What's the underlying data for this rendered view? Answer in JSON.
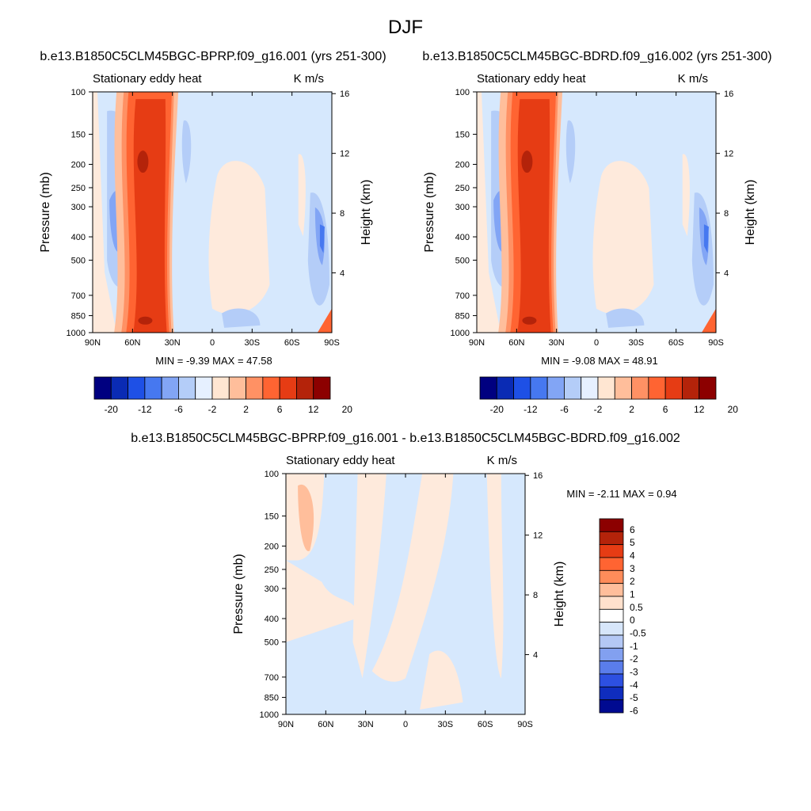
{
  "figure": {
    "title": "DJF"
  },
  "chart_data": [
    {
      "type": "heatmap",
      "panel_title": "b.e13.B1850C5CLM45BGC-BPRP.f09_g16.001 (yrs 251-300)",
      "left_label": "Stationary eddy heat",
      "right_label": "K m/s",
      "ylabel": "Pressure (mb)",
      "ylabel_right": "Height (km)",
      "x_ticks": [
        "90N",
        "60N",
        "30N",
        "0",
        "30S",
        "60S",
        "90S"
      ],
      "y_ticks": [
        "100",
        "150",
        "200",
        "250",
        "300",
        "400",
        "500",
        "700",
        "850",
        "1000"
      ],
      "y_ticks_right": [
        "16",
        "12",
        "8",
        "4"
      ],
      "stats": "MIN =  -9.39   MAX =  47.58",
      "min": -9.39,
      "max": 47.58,
      "colorbar_orientation": "horizontal",
      "colorbar_labels": [
        "-20",
        "-12",
        "-6",
        "-2",
        "2",
        "6",
        "12",
        "20"
      ]
    },
    {
      "type": "heatmap",
      "panel_title": "b.e13.B1850C5CLM45BGC-BDRD.f09_g16.002 (yrs 251-300)",
      "left_label": "Stationary eddy heat",
      "right_label": "K m/s",
      "ylabel": "Pressure (mb)",
      "ylabel_right": "Height (km)",
      "x_ticks": [
        "90N",
        "60N",
        "30N",
        "0",
        "30S",
        "60S",
        "90S"
      ],
      "y_ticks": [
        "100",
        "150",
        "200",
        "250",
        "300",
        "400",
        "500",
        "700",
        "850",
        "1000"
      ],
      "y_ticks_right": [
        "16",
        "12",
        "8",
        "4"
      ],
      "stats": "MIN =  -9.08   MAX =  48.91",
      "min": -9.08,
      "max": 48.91,
      "colorbar_orientation": "horizontal",
      "colorbar_labels": [
        "-20",
        "-12",
        "-6",
        "-2",
        "2",
        "6",
        "12",
        "20"
      ]
    },
    {
      "type": "heatmap",
      "panel_title": "b.e13.B1850C5CLM45BGC-BPRP.f09_g16.001 - b.e13.B1850C5CLM45BGC-BDRD.f09_g16.002",
      "left_label": "Stationary eddy heat",
      "right_label": "K m/s",
      "ylabel": "Pressure (mb)",
      "ylabel_right": "Height (km)",
      "x_ticks": [
        "90N",
        "60N",
        "30N",
        "0",
        "30S",
        "60S",
        "90S"
      ],
      "y_ticks": [
        "100",
        "150",
        "200",
        "250",
        "300",
        "400",
        "500",
        "700",
        "850",
        "1000"
      ],
      "y_ticks_right": [
        "16",
        "12",
        "8",
        "4"
      ],
      "stats": "MIN =  -2.11   MAX =   0.94",
      "min": -2.11,
      "max": 0.94,
      "colorbar_orientation": "vertical",
      "colorbar_labels": [
        "6",
        "5",
        "4",
        "3",
        "2",
        "1",
        "0.5",
        "0",
        "-0.5",
        "-1",
        "-2",
        "-3",
        "-4",
        "-5",
        "-6"
      ]
    }
  ],
  "colors": {
    "main_bar": [
      "#000080",
      "#0a2bb4",
      "#1e50e6",
      "#4678f0",
      "#82a5f5",
      "#b4cdf8",
      "#e6f0ff",
      "#ffe6d2",
      "#ffbe9b",
      "#ff9164",
      "#ff6432",
      "#e63c14",
      "#b4230a",
      "#8c0000"
    ],
    "diff_bar": [
      "#8c0000",
      "#b4230a",
      "#e63c14",
      "#ff6432",
      "#ff8c5a",
      "#ffbe9b",
      "#ffe1cd",
      "#ffffff",
      "#d7e6fa",
      "#b4c8f5",
      "#82a0f0",
      "#5a7deb",
      "#2d50e1",
      "#0f2dbe",
      "#000a91"
    ],
    "field_light_blue": "#d6e8fd",
    "field_peach": "#feeadc",
    "field_blue_1": "#b4cdf8",
    "field_blue_2": "#82a5f5",
    "field_blue_3": "#4678f0",
    "field_red_1": "#ffbe9b",
    "field_red_2": "#ff9164",
    "field_red_3": "#ff6432",
    "field_red_4": "#e63c14",
    "field_red_5": "#b4230a"
  }
}
